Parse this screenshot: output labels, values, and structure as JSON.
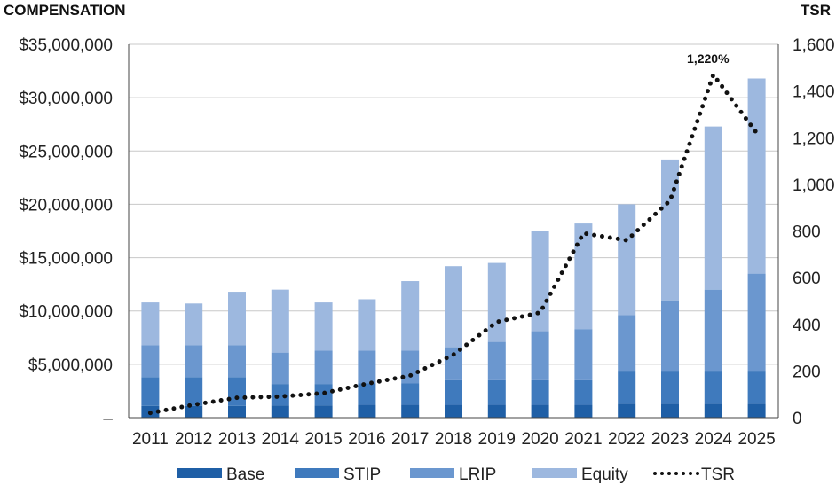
{
  "chart_data": {
    "type": "bar",
    "stacked": true,
    "left_axis_title": "COMPENSATION",
    "right_axis_title": "TSR",
    "categories": [
      "2011",
      "2012",
      "2013",
      "2014",
      "2015",
      "2016",
      "2017",
      "2018",
      "2019",
      "2020",
      "2021",
      "2022",
      "2023",
      "2024",
      "2025"
    ],
    "series": [
      {
        "name": "Base",
        "color": "#1f5fa6",
        "values": [
          1100000,
          1100000,
          1100000,
          1150000,
          1150000,
          1200000,
          1200000,
          1200000,
          1200000,
          1200000,
          1200000,
          1300000,
          1300000,
          1300000,
          1300000
        ]
      },
      {
        "name": "STIP",
        "color": "#3f7abd",
        "values": [
          2700000,
          2700000,
          2700000,
          2000000,
          2000000,
          2000000,
          2000000,
          2300000,
          2300000,
          2300000,
          2300000,
          3100000,
          3100000,
          3100000,
          3100000
        ]
      },
      {
        "name": "LRIP",
        "color": "#6b97cf",
        "values": [
          3000000,
          3000000,
          3000000,
          2950000,
          3150000,
          3100000,
          3100000,
          3100000,
          3600000,
          4600000,
          4800000,
          5200000,
          6600000,
          7600000,
          9100000
        ]
      },
      {
        "name": "Equity",
        "color": "#9db8df",
        "values": [
          4000000,
          3900000,
          5000000,
          5900000,
          4500000,
          4800000,
          6500000,
          7600000,
          7400000,
          9400000,
          9900000,
          10400000,
          13200000,
          15300000,
          18300000
        ]
      }
    ],
    "line_series": {
      "name": "TSR",
      "color": "#111111",
      "style": "dotted",
      "values": [
        20,
        55,
        85,
        90,
        105,
        145,
        180,
        270,
        410,
        450,
        790,
        760,
        930,
        1470,
        1220
      ]
    },
    "left_axis": {
      "min": 0,
      "max": 35000000,
      "ticks": [
        "–",
        "$5,000,000",
        "$10,000,000",
        "$15,000,000",
        "$20,000,000",
        "$25,000,000",
        "$30,000,000",
        "$35,000,000"
      ]
    },
    "right_axis": {
      "min": 0,
      "max": 1600,
      "ticks": [
        "0",
        "200",
        "400",
        "600",
        "800",
        "1,000",
        "1,200",
        "1,400",
        "1,600"
      ]
    },
    "annotation": {
      "text": "1,220%",
      "year_index": 13
    },
    "legend": [
      "Base",
      "STIP",
      "LRIP",
      "Equity",
      "TSR"
    ],
    "legend_position": "bottom"
  }
}
